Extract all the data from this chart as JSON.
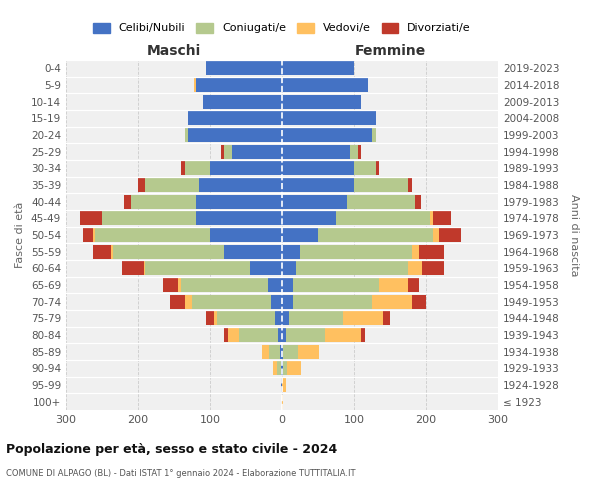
{
  "age_groups": [
    "100+",
    "95-99",
    "90-94",
    "85-89",
    "80-84",
    "75-79",
    "70-74",
    "65-69",
    "60-64",
    "55-59",
    "50-54",
    "45-49",
    "40-44",
    "35-39",
    "30-34",
    "25-29",
    "20-24",
    "15-19",
    "10-14",
    "5-9",
    "0-4"
  ],
  "birth_years": [
    "≤ 1923",
    "1924-1928",
    "1929-1933",
    "1934-1938",
    "1939-1943",
    "1944-1948",
    "1949-1953",
    "1954-1958",
    "1959-1963",
    "1964-1968",
    "1969-1973",
    "1974-1978",
    "1979-1983",
    "1984-1988",
    "1989-1993",
    "1994-1998",
    "1999-2003",
    "2004-2008",
    "2009-2013",
    "2014-2018",
    "2019-2023"
  ],
  "colors": {
    "celibi": "#4472C4",
    "coniugati": "#b5c98e",
    "vedovi": "#ffc060",
    "divorziati": "#c0392b"
  },
  "males": {
    "celibi": [
      0,
      1,
      2,
      3,
      5,
      10,
      15,
      20,
      45,
      80,
      100,
      120,
      120,
      115,
      100,
      70,
      130,
      130,
      110,
      120,
      105
    ],
    "coniugati": [
      0,
      0,
      5,
      15,
      55,
      80,
      110,
      120,
      145,
      155,
      160,
      130,
      90,
      75,
      35,
      10,
      5,
      0,
      0,
      0,
      0
    ],
    "vedovi": [
      0,
      0,
      5,
      10,
      15,
      5,
      10,
      5,
      2,
      2,
      2,
      0,
      0,
      0,
      0,
      0,
      0,
      0,
      0,
      2,
      0
    ],
    "divorziati": [
      0,
      0,
      0,
      0,
      5,
      10,
      20,
      20,
      30,
      25,
      15,
      30,
      10,
      10,
      5,
      5,
      0,
      0,
      0,
      0,
      0
    ]
  },
  "females": {
    "celibi": [
      0,
      0,
      2,
      2,
      5,
      10,
      15,
      15,
      20,
      25,
      50,
      75,
      90,
      100,
      100,
      95,
      125,
      130,
      110,
      120,
      100
    ],
    "coniugati": [
      0,
      0,
      5,
      20,
      55,
      75,
      110,
      120,
      155,
      155,
      160,
      130,
      95,
      75,
      30,
      10,
      5,
      0,
      0,
      0,
      0
    ],
    "vedovi": [
      2,
      5,
      20,
      30,
      50,
      55,
      55,
      40,
      20,
      10,
      8,
      5,
      0,
      0,
      0,
      0,
      0,
      0,
      0,
      0,
      0
    ],
    "divorziati": [
      0,
      0,
      0,
      0,
      5,
      10,
      20,
      15,
      30,
      35,
      30,
      25,
      8,
      5,
      5,
      5,
      0,
      0,
      0,
      0,
      0
    ]
  },
  "xlim": 300,
  "title": "Popolazione per età, sesso e stato civile - 2024",
  "subtitle": "COMUNE DI ALPAGO (BL) - Dati ISTAT 1° gennaio 2024 - Elaborazione TUTTITALIA.IT",
  "ylabel_left": "Fasce di età",
  "ylabel_right": "Anni di nascita",
  "xlabel_maschi": "Maschi",
  "xlabel_femmine": "Femmine",
  "legend_labels": [
    "Celibi/Nubili",
    "Coniugati/e",
    "Vedovi/e",
    "Divorziati/e"
  ],
  "background_color": "#f0f0f0"
}
